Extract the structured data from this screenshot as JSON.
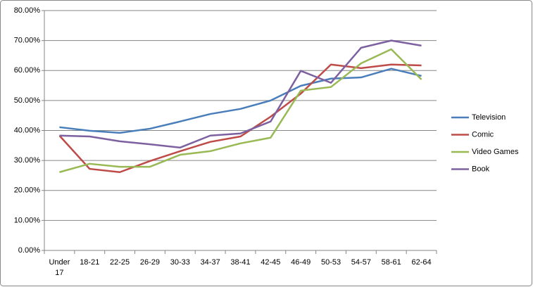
{
  "chart_data": {
    "type": "line",
    "categories": [
      "Under 17",
      "18-21",
      "22-25",
      "26-29",
      "30-33",
      "34-37",
      "38-41",
      "42-45",
      "46-49",
      "50-53",
      "54-57",
      "58-61",
      "62-64"
    ],
    "series": [
      {
        "name": "Television",
        "color": "#4a7ebb",
        "values": [
          41.1,
          39.9,
          39.2,
          40.6,
          43.0,
          45.5,
          47.2,
          50.0,
          54.9,
          57.3,
          57.7,
          60.6,
          58.2
        ]
      },
      {
        "name": "Comic",
        "color": "#be4b48",
        "values": [
          38.3,
          27.2,
          26.1,
          29.8,
          33.1,
          36.2,
          38.0,
          44.6,
          52.3,
          62.0,
          60.8,
          62.0,
          61.7
        ]
      },
      {
        "name": "Video Games",
        "color": "#98b954",
        "values": [
          26.1,
          28.9,
          27.9,
          27.9,
          31.9,
          33.1,
          35.7,
          37.6,
          53.3,
          54.5,
          62.4,
          67.1,
          57.0
        ]
      },
      {
        "name": "Book",
        "color": "#7d60a0",
        "values": [
          38.3,
          38.0,
          36.4,
          35.4,
          34.3,
          38.3,
          39.0,
          43.0,
          59.9,
          55.9,
          67.6,
          70.0,
          68.3
        ]
      }
    ],
    "ylim": [
      0,
      80
    ],
    "yticks": [
      {
        "value": 0,
        "label": "0.00%"
      },
      {
        "value": 10,
        "label": "10.00%"
      },
      {
        "value": 20,
        "label": "20.00%"
      },
      {
        "value": 30,
        "label": "30.00%"
      },
      {
        "value": 40,
        "label": "40.00%"
      },
      {
        "value": 50,
        "label": "50.00%"
      },
      {
        "value": 60,
        "label": "60.00%"
      },
      {
        "value": 70,
        "label": "70.00%"
      },
      {
        "value": 80,
        "label": "80.00%"
      }
    ],
    "grid": true,
    "legend": "right"
  }
}
